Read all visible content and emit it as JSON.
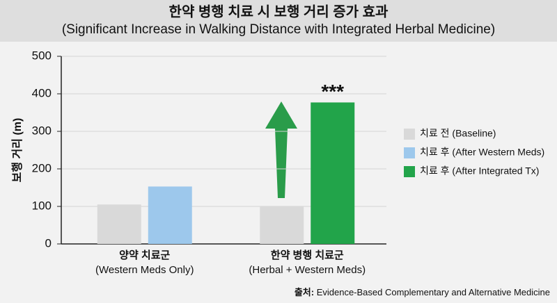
{
  "chart_data": {
    "type": "bar",
    "title": "한약 병행 치료 시 보행 거리 증가 효과",
    "subtitle": "(Significant Increase in Walking Distance with Integrated Herbal Medicine)",
    "y_label": "보행 거리 (m)",
    "categories": [
      "양약 치료군",
      "한약 병행 치료군"
    ],
    "category_sublabels": [
      "(Western Meds Only)",
      "(Herbal + Western Meds)"
    ],
    "series": [
      {
        "name": "치료 전 (Baseline)",
        "color": "#d9d9d9",
        "values": [
          105,
          100
        ]
      },
      {
        "name": "치료 후 (After Western Meds)",
        "color": "#9dc8ec",
        "values": [
          153,
          null
        ]
      },
      {
        "name": "치료 후 (After Integrated Tx)",
        "color": "#22a44a",
        "values": [
          null,
          377
        ]
      }
    ],
    "annotation": "***",
    "ylim": [
      0,
      500
    ],
    "yticks": [
      0,
      100,
      200,
      300,
      400,
      500
    ],
    "grid": true,
    "legend": "right",
    "source_label": "출처:",
    "source": "Evidence-Based Complementary and Alternative Medicine"
  }
}
